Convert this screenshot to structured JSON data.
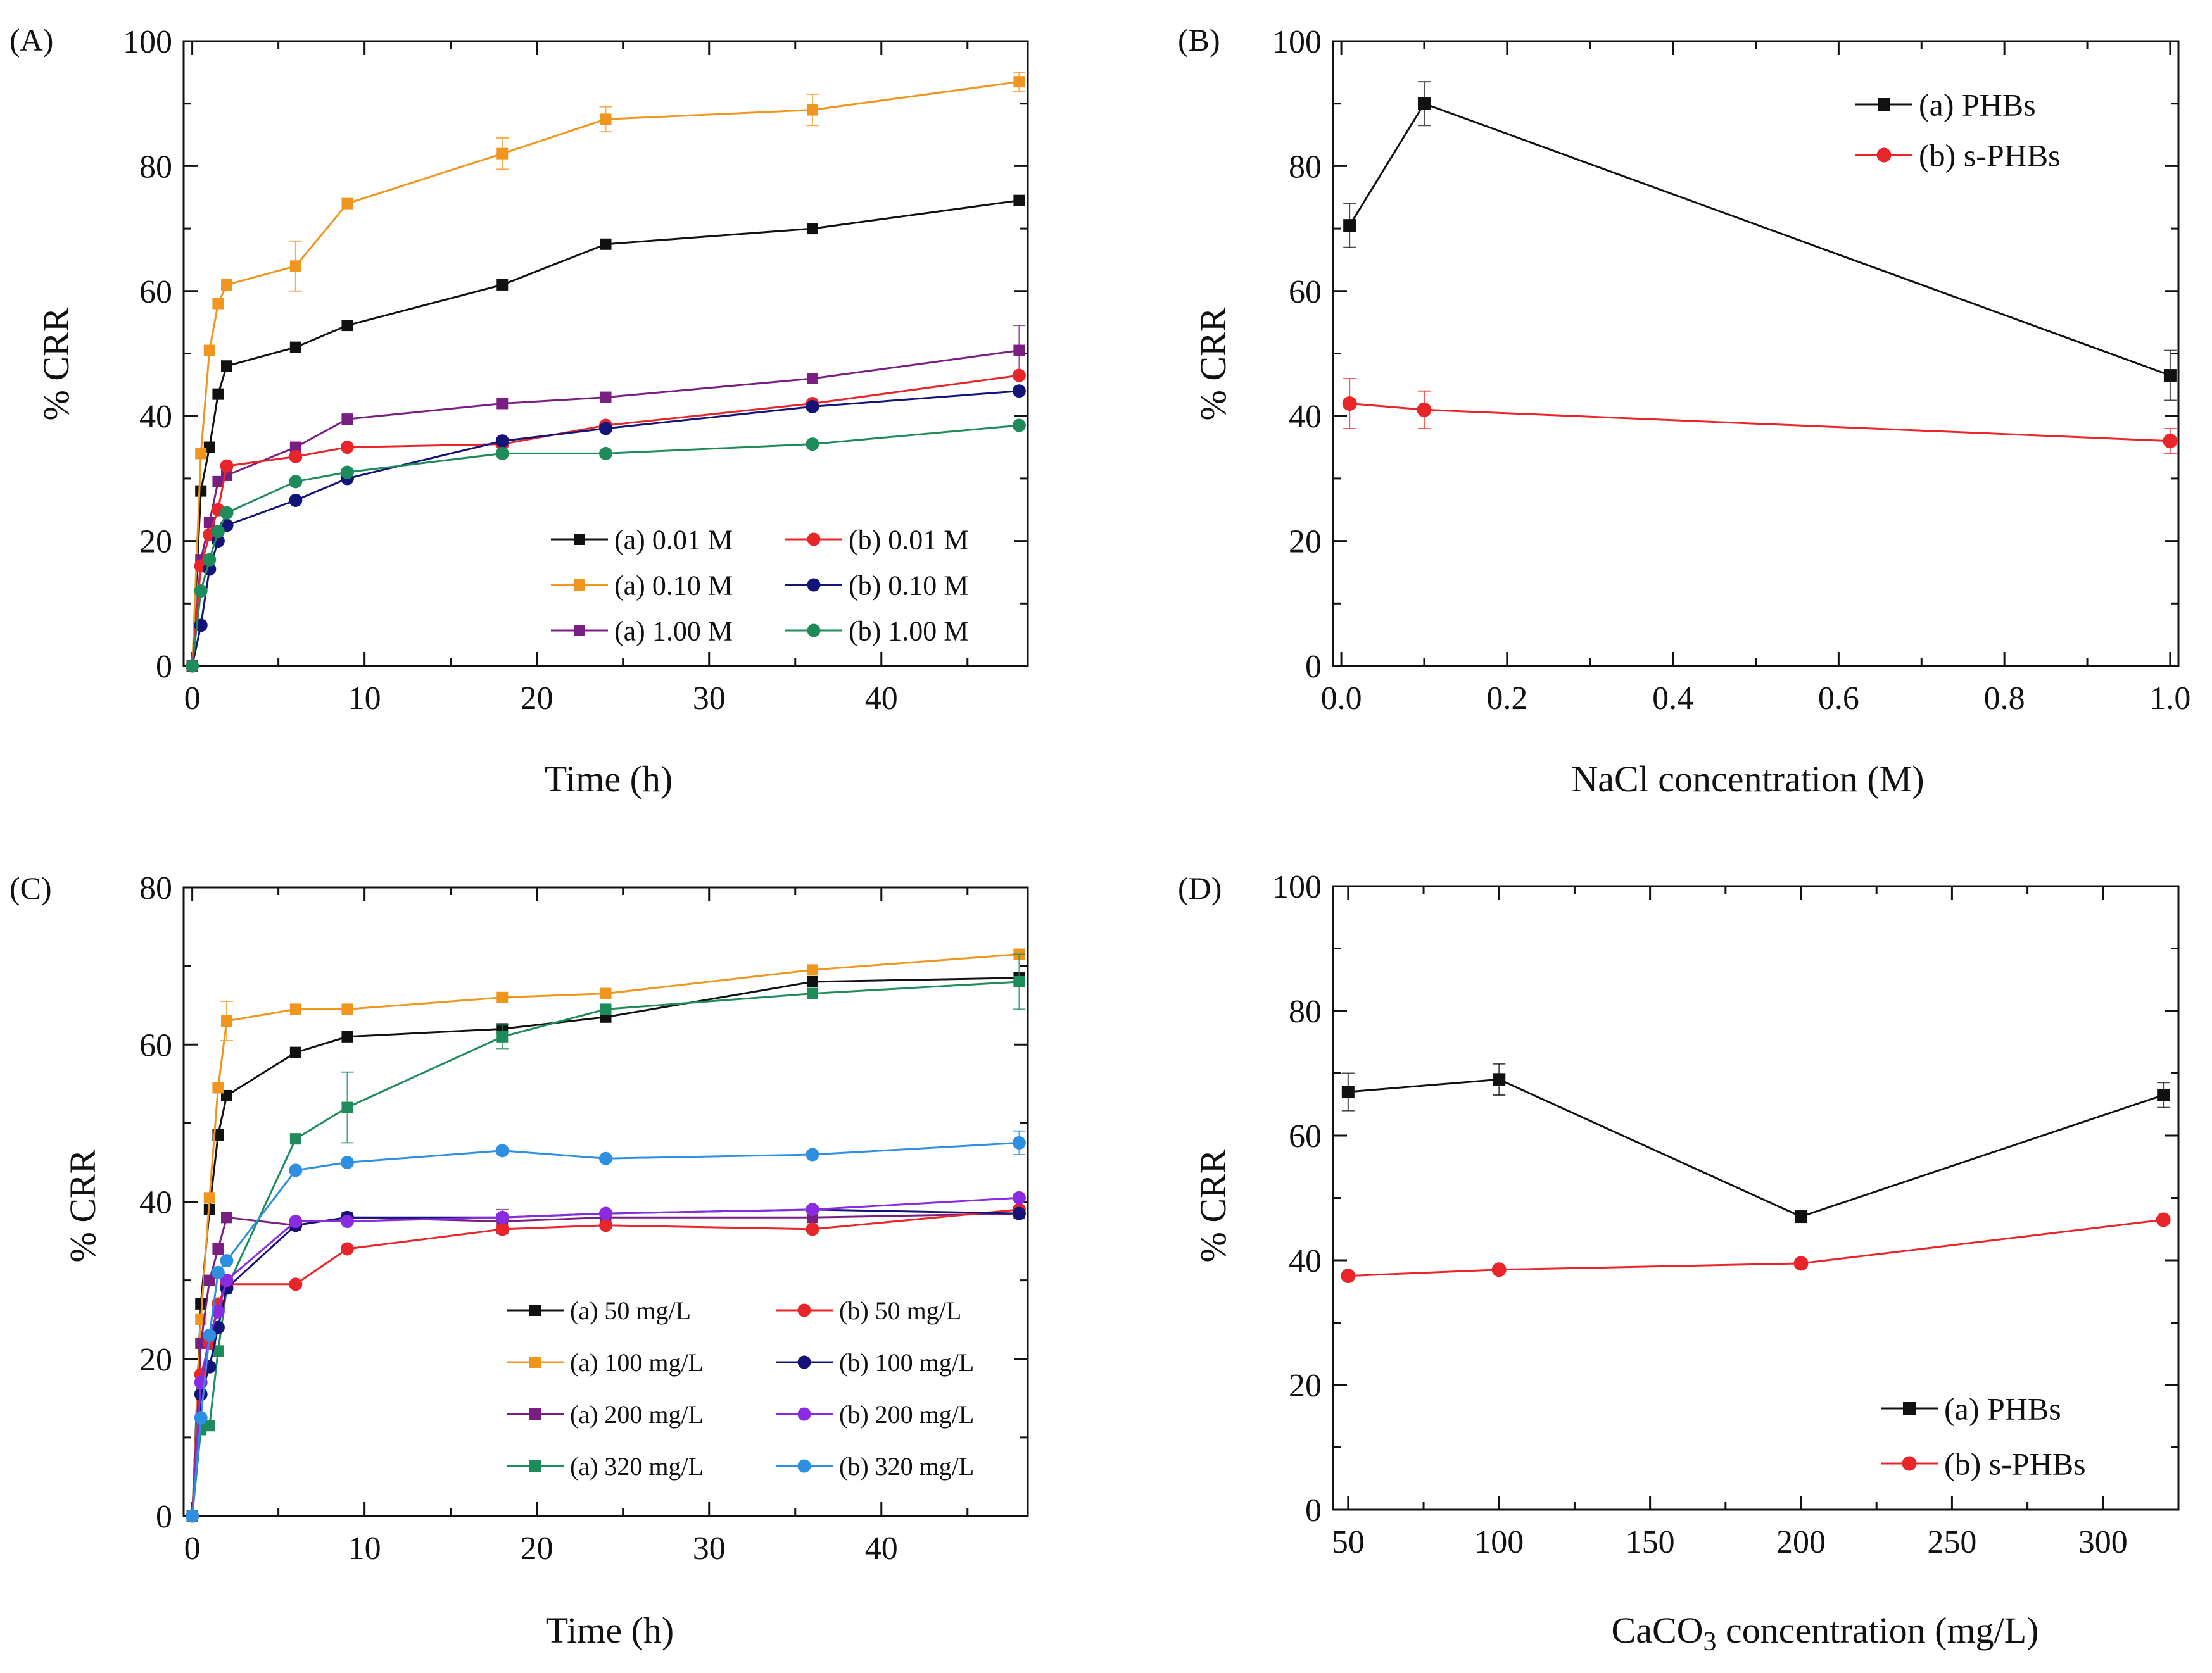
{
  "colors": {
    "black": "#111111",
    "orange": "#F0961E",
    "purple": "#7A1F82",
    "red": "#E8262A",
    "navy": "#141478",
    "green": "#1E8C5A",
    "violet": "#8A2BE2",
    "blue": "#2E8FE0"
  },
  "chart_data": [
    {
      "id": "A",
      "panel_label": "(A)",
      "type": "line",
      "xlabel": "Time (h)",
      "ylabel": "% CRR",
      "xlim": [
        -0.5,
        48.5
      ],
      "ylim": [
        0,
        100
      ],
      "xticks": [
        0,
        10,
        20,
        30,
        40
      ],
      "yticks": [
        0,
        20,
        40,
        60,
        80,
        100
      ],
      "xticks_minor": [
        5,
        15,
        25,
        35,
        45
      ],
      "yticks_minor": [
        10,
        30,
        50,
        70,
        90
      ],
      "legend_position": "bottom-right",
      "legend_columns": 2,
      "legend_order": [
        0,
        3,
        1,
        4,
        2,
        5
      ],
      "series": [
        {
          "name": "(a) 0.01 M",
          "marker": "square",
          "color": "#111111",
          "x": [
            0,
            0.5,
            1,
            1.5,
            2,
            6,
            9,
            18,
            24,
            36,
            48
          ],
          "y": [
            0,
            28,
            35,
            43.5,
            48,
            51,
            54.5,
            61,
            67.5,
            70,
            74.5
          ],
          "err": [
            0,
            0,
            0,
            0,
            0,
            0,
            0,
            0,
            0,
            0,
            0
          ]
        },
        {
          "name": "(a) 0.10 M",
          "marker": "square",
          "color": "#F0961E",
          "x": [
            0,
            0.5,
            1,
            1.5,
            2,
            6,
            9,
            18,
            24,
            36,
            48
          ],
          "y": [
            0,
            34,
            50.5,
            58,
            61,
            64,
            74,
            82,
            87.5,
            89,
            93.5
          ],
          "err": [
            0,
            0,
            0,
            0,
            0,
            4,
            0,
            2.5,
            2,
            2.5,
            1.5
          ]
        },
        {
          "name": "(a) 1.00 M",
          "marker": "square",
          "color": "#7A1F82",
          "x": [
            0,
            0.5,
            1,
            1.5,
            2,
            6,
            9,
            18,
            24,
            36,
            48
          ],
          "y": [
            0,
            17,
            23,
            29.5,
            30.5,
            35,
            39.5,
            42,
            43,
            46,
            50.5
          ],
          "err": [
            0,
            0,
            0,
            0,
            0,
            0,
            0,
            0,
            0,
            0,
            4
          ]
        },
        {
          "name": "(b) 0.01 M",
          "marker": "circle",
          "color": "#E8262A",
          "x": [
            0,
            0.5,
            1,
            1.5,
            2,
            6,
            9,
            18,
            24,
            36,
            48
          ],
          "y": [
            0,
            16,
            21,
            25,
            32,
            33.5,
            35,
            35.5,
            38.5,
            42,
            46.5
          ],
          "err": [
            0,
            0,
            0,
            0,
            0,
            0,
            0,
            0,
            0,
            0,
            0
          ]
        },
        {
          "name": "(b) 0.10 M",
          "marker": "circle",
          "color": "#141478",
          "x": [
            0,
            0.5,
            1,
            1.5,
            2,
            6,
            9,
            18,
            24,
            36,
            48
          ],
          "y": [
            0,
            6.5,
            15.5,
            20,
            22.5,
            26.5,
            30,
            36,
            38,
            41.5,
            44
          ],
          "err": [
            0,
            0,
            0,
            0,
            0,
            0,
            0,
            0,
            0,
            0,
            0
          ]
        },
        {
          "name": "(b) 1.00 M",
          "marker": "circle",
          "color": "#1E8C5A",
          "x": [
            0,
            0.5,
            1,
            1.5,
            2,
            6,
            9,
            18,
            24,
            36,
            48
          ],
          "y": [
            0,
            12,
            17,
            21.5,
            24.5,
            29.5,
            31,
            34,
            34,
            35.5,
            38.5
          ],
          "err": [
            0,
            0,
            0,
            0,
            0,
            0,
            0,
            0,
            0,
            0,
            0
          ]
        }
      ]
    },
    {
      "id": "B",
      "panel_label": "(B)",
      "type": "line",
      "xlabel": "NaCl concentration (M)",
      "ylabel": "% CRR",
      "xlim": [
        -0.01,
        1.01
      ],
      "ylim": [
        0,
        100
      ],
      "xticks": [
        0.0,
        0.2,
        0.4,
        0.6,
        0.8,
        1.0
      ],
      "xtick_labels": [
        "0.0",
        "0.2",
        "0.4",
        "0.6",
        "0.8",
        "1.0"
      ],
      "yticks": [
        0,
        20,
        40,
        60,
        80,
        100
      ],
      "xticks_minor": [
        0.1,
        0.3,
        0.5,
        0.7,
        0.9
      ],
      "yticks_minor": [
        10,
        30,
        50,
        70,
        90
      ],
      "legend_position": "top-right",
      "legend_columns": 1,
      "legend_order": [
        0,
        1
      ],
      "series": [
        {
          "name": "(a) PHBs",
          "marker": "square",
          "color": "#111111",
          "x": [
            0.01,
            0.1,
            1.0
          ],
          "y": [
            70.5,
            90,
            46.5
          ],
          "err": [
            3.5,
            3.5,
            4
          ]
        },
        {
          "name": "(b) s-PHBs",
          "marker": "circle",
          "color": "#E8262A",
          "x": [
            0.01,
            0.1,
            1.0
          ],
          "y": [
            42,
            41,
            36
          ],
          "err": [
            4,
            3,
            2
          ]
        }
      ]
    },
    {
      "id": "C",
      "panel_label": "(C)",
      "type": "line",
      "xlabel": "Time (h)",
      "ylabel": "% CRR",
      "xlim": [
        -0.5,
        48.5
      ],
      "ylim": [
        0,
        80
      ],
      "xticks": [
        0,
        10,
        20,
        30,
        40
      ],
      "yticks": [
        0,
        20,
        40,
        60,
        80
      ],
      "xticks_minor": [
        5,
        15,
        25,
        35,
        45
      ],
      "yticks_minor": [
        10,
        30,
        50,
        70
      ],
      "legend_position": "bottom-center",
      "legend_columns": 2,
      "legend_order": [
        0,
        4,
        1,
        5,
        2,
        6,
        3,
        7
      ],
      "series": [
        {
          "name": "(a) 50 mg/L",
          "marker": "square",
          "color": "#111111",
          "x": [
            0,
            0.5,
            1,
            1.5,
            2,
            6,
            9,
            18,
            24,
            36,
            48
          ],
          "y": [
            0,
            27,
            39,
            48.5,
            53.5,
            59,
            61,
            62,
            63.5,
            68,
            68.5
          ],
          "err": [
            0,
            0,
            0,
            0,
            0,
            0,
            0,
            0,
            0,
            0,
            0
          ]
        },
        {
          "name": "(a) 100 mg/L",
          "marker": "square",
          "color": "#F0961E",
          "x": [
            0,
            0.5,
            1,
            1.5,
            2,
            6,
            9,
            18,
            24,
            36,
            48
          ],
          "y": [
            0,
            25,
            40.5,
            54.5,
            63,
            64.5,
            64.5,
            66,
            66.5,
            69.5,
            71.5
          ],
          "err": [
            0,
            0,
            0,
            0,
            2.5,
            0,
            0,
            0,
            0,
            0,
            0
          ]
        },
        {
          "name": "(a) 200 mg/L",
          "marker": "square",
          "color": "#7A1F82",
          "x": [
            0,
            0.5,
            1,
            1.5,
            2,
            6,
            9,
            18,
            24,
            36,
            48
          ],
          "y": [
            0,
            22,
            30,
            34,
            38,
            37,
            38,
            37.5,
            38,
            38,
            38.5
          ],
          "err": [
            0,
            0,
            0,
            0,
            0,
            0,
            0,
            1.5,
            0,
            0,
            0
          ]
        },
        {
          "name": "(a) 320 mg/L",
          "marker": "square",
          "color": "#1E8C5A",
          "x": [
            0,
            0.5,
            1,
            1.5,
            2,
            6,
            9,
            18,
            24,
            36,
            48
          ],
          "y": [
            0,
            11,
            11.5,
            21,
            29,
            48,
            52,
            61,
            64.5,
            66.5,
            68
          ],
          "err": [
            0,
            0,
            0,
            0,
            0,
            0,
            4.5,
            1.5,
            0,
            0,
            3.5
          ]
        },
        {
          "name": "(b) 50 mg/L",
          "marker": "circle",
          "color": "#E8262A",
          "x": [
            0,
            0.5,
            1,
            1.5,
            2,
            6,
            9,
            18,
            24,
            36,
            48
          ],
          "y": [
            0,
            18,
            22,
            27,
            29.5,
            29.5,
            34,
            36.5,
            37,
            36.5,
            39
          ],
          "err": [
            0,
            0,
            0,
            0,
            0,
            0,
            0,
            0,
            0,
            0,
            0
          ]
        },
        {
          "name": "(b) 100 mg/L",
          "marker": "circle",
          "color": "#141478",
          "x": [
            0,
            0.5,
            1,
            1.5,
            2,
            6,
            9,
            18,
            24,
            36,
            48
          ],
          "y": [
            0,
            15.5,
            19,
            24,
            29,
            37,
            38,
            38,
            38.5,
            39,
            38.5
          ],
          "err": [
            0,
            0,
            0,
            0,
            0,
            0,
            0,
            0,
            0,
            0,
            0
          ]
        },
        {
          "name": "(b) 200 mg/L",
          "marker": "circle",
          "color": "#8A2BE2",
          "x": [
            0,
            0.5,
            1,
            1.5,
            2,
            6,
            9,
            18,
            24,
            36,
            48
          ],
          "y": [
            0,
            17,
            23,
            26,
            30,
            37.5,
            37.5,
            38,
            38.5,
            39,
            40.5
          ],
          "err": [
            0,
            0,
            0,
            0,
            0,
            0,
            0,
            0,
            0,
            0,
            0
          ]
        },
        {
          "name": "(b) 320 mg/L",
          "marker": "circle",
          "color": "#2E8FE0",
          "x": [
            0,
            0.5,
            1,
            1.5,
            2,
            6,
            9,
            18,
            24,
            36,
            48
          ],
          "y": [
            0,
            12.5,
            23,
            31,
            32.5,
            44,
            45,
            46.5,
            45.5,
            46,
            47.5
          ],
          "err": [
            0,
            0,
            0,
            0,
            0,
            0,
            0,
            0,
            0,
            0,
            1.5
          ]
        }
      ]
    },
    {
      "id": "D",
      "panel_label": "(D)",
      "type": "line",
      "xlabel": "CaCO3 concentration (mg/L)",
      "xlabel_parts": [
        "CaCO",
        "3",
        " concentration (mg/L)"
      ],
      "ylabel": "% CRR",
      "xlim": [
        45,
        325
      ],
      "ylim": [
        0,
        100
      ],
      "xticks": [
        50,
        100,
        150,
        200,
        250,
        300
      ],
      "yticks": [
        0,
        20,
        40,
        60,
        80,
        100
      ],
      "xticks_minor": [
        75,
        125,
        175,
        225,
        275
      ],
      "yticks_minor": [
        10,
        30,
        50,
        70,
        90
      ],
      "legend_position": "bottom-right",
      "legend_columns": 1,
      "legend_order": [
        0,
        1
      ],
      "series": [
        {
          "name": "(a) PHBs",
          "marker": "square",
          "color": "#111111",
          "x": [
            50,
            100,
            200,
            320
          ],
          "y": [
            67,
            69,
            47,
            66.5
          ],
          "err": [
            3,
            2.5,
            0,
            2
          ]
        },
        {
          "name": "(b) s-PHBs",
          "marker": "circle",
          "color": "#E8262A",
          "x": [
            50,
            100,
            200,
            320
          ],
          "y": [
            37.5,
            38.5,
            39.5,
            46.5
          ],
          "err": [
            0,
            0,
            0,
            0
          ]
        }
      ]
    }
  ]
}
